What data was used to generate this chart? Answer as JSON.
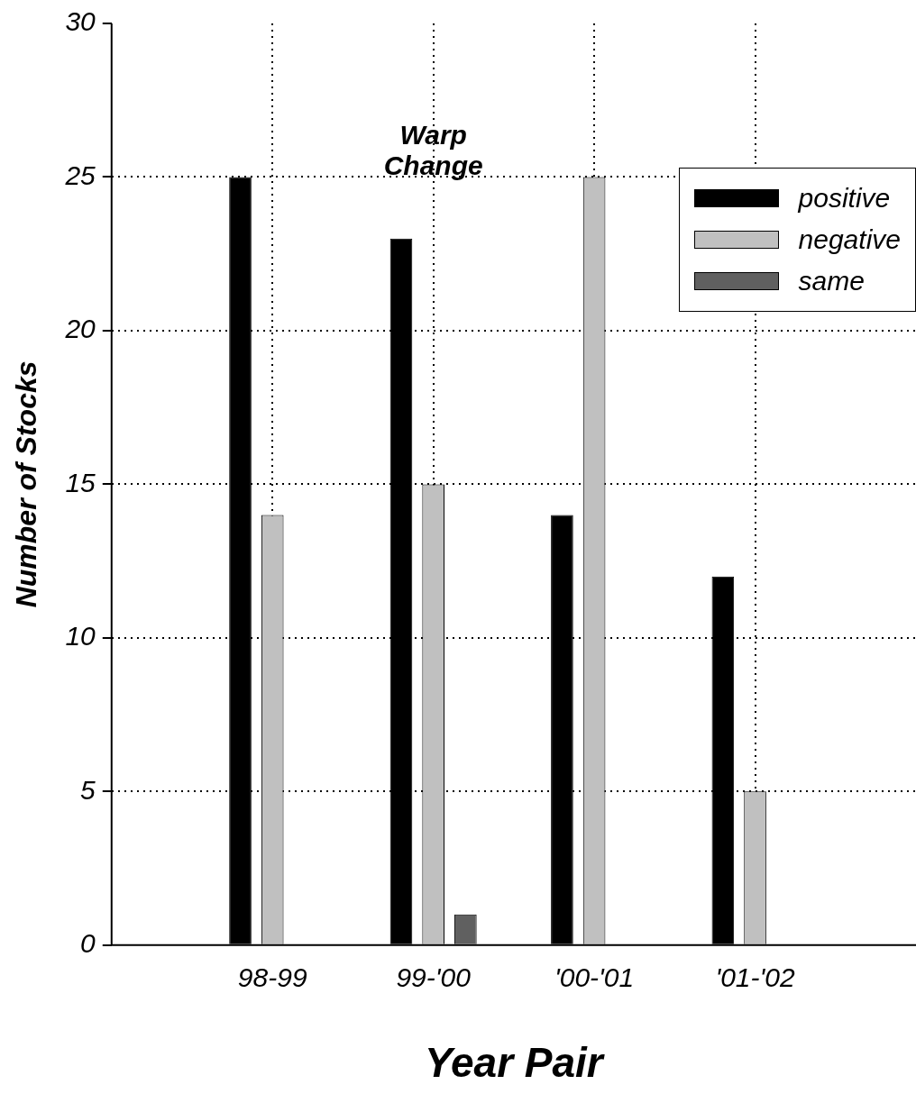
{
  "chart_data": {
    "type": "bar",
    "xlabel": "Year Pair",
    "ylabel": "Number of Stocks",
    "categories": [
      "98-99",
      "99-'00",
      "'00-'01",
      "'01-'02"
    ],
    "series": [
      {
        "name": "positive",
        "color": "#000000",
        "values": [
          25,
          23,
          14,
          12
        ]
      },
      {
        "name": "negative",
        "color": "#c0c0c0",
        "values": [
          14,
          15,
          25,
          5
        ]
      },
      {
        "name": "same",
        "color": "#606060",
        "values": [
          0,
          1,
          0,
          0
        ]
      }
    ],
    "ylim": [
      0,
      30
    ],
    "yticks": [
      0,
      5,
      10,
      15,
      20,
      25,
      30
    ],
    "grid": true,
    "legend": "top right",
    "annotations": [
      "Warp Change"
    ]
  }
}
